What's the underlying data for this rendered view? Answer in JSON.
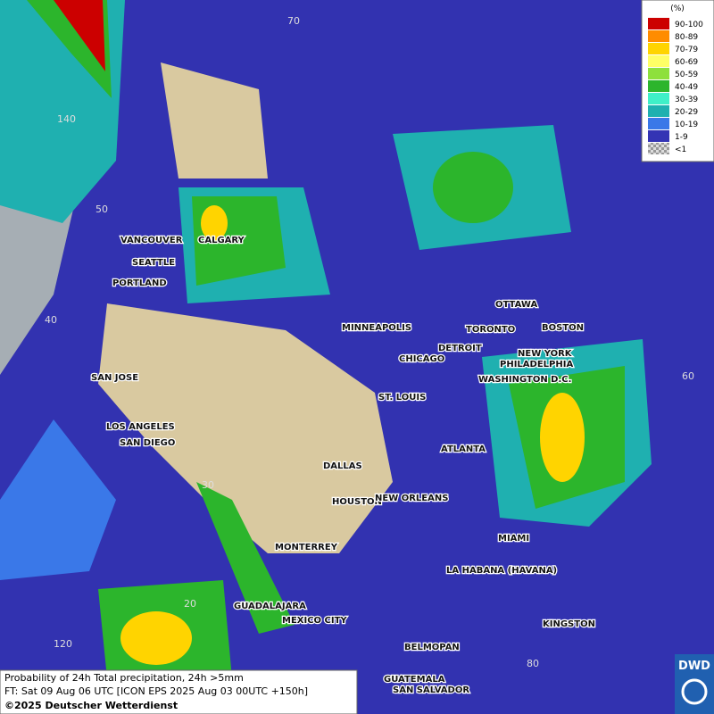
{
  "legend": {
    "unit": "(%)",
    "items": [
      {
        "label": "90-100",
        "color": "#cc0000"
      },
      {
        "label": "80-89",
        "color": "#ff8c00"
      },
      {
        "label": "70-79",
        "color": "#ffd400"
      },
      {
        "label": "60-69",
        "color": "#ffff66"
      },
      {
        "label": "50-59",
        "color": "#8ee03c"
      },
      {
        "label": "40-49",
        "color": "#2cb52c"
      },
      {
        "label": "30-39",
        "color": "#3ff0c8"
      },
      {
        "label": "20-29",
        "color": "#1fb0b0"
      },
      {
        "label": "10-19",
        "color": "#3a78e8"
      },
      {
        "label": "1-9",
        "color": "#3434b4"
      },
      {
        "label": "<1",
        "color": "#b0b0b0"
      }
    ]
  },
  "cities": [
    "VANCOUVER",
    "CALGARY",
    "SEATTLE",
    "PORTLAND",
    "MINNEAPOLIS",
    "TORONTO",
    "OTTAWA",
    "BOSTON",
    "DETROIT",
    "CHICAGO",
    "NEW YORK",
    "PHILADELPHIA",
    "WASHINGTON D.C.",
    "SAN JOSE",
    "ST. LOUIS",
    "LOS ANGELES",
    "SAN DIEGO",
    "ATLANTA",
    "DALLAS",
    "HOUSTON",
    "NEW ORLEANS",
    "MIAMI",
    "MONTERREY",
    "LA HABANA (HAVANA)",
    "GUADALAJARA",
    "MEXICO CITY",
    "KINGSTON",
    "BELMOPAN",
    "GUATEMALA",
    "SAN SALVADOR"
  ],
  "grid_labels": [
    "70",
    "140",
    "50",
    "40",
    "60",
    "30",
    "20",
    "120",
    "80"
  ],
  "info": [
    "Probability of 24h Total precipitation, 24h >5mm",
    "FT: Sat 09 Aug 06 UTC [ICON EPS 2025 Aug 03 00UTC +150h]",
    "©2025 Deutscher Wetterdienst"
  ],
  "logo": "DWD"
}
